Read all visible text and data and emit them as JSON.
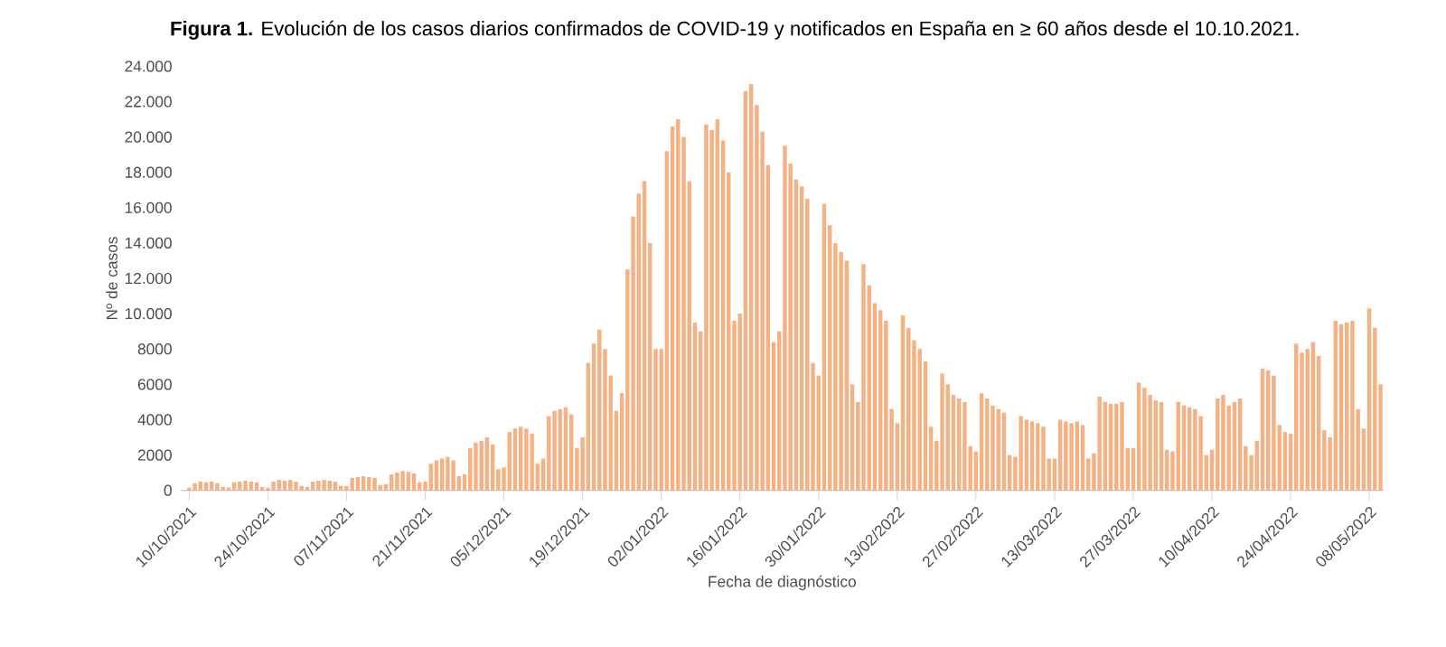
{
  "chart_data": {
    "type": "bar",
    "title": "**Figura 1.** Evolución de los casos diarios confirmados de COVID-19 y notificados en España en ≥ 60 años desde el 10.10.2021.",
    "xlabel": "Fecha de diagnóstico",
    "ylabel": "Nº de casos",
    "color": "#f4b183",
    "categories": [
      "10/10/2021",
      null,
      null,
      null,
      null,
      null,
      null,
      null,
      null,
      null,
      null,
      null,
      null,
      null,
      "24/10/2021",
      null,
      null,
      null,
      null,
      null,
      null,
      null,
      null,
      null,
      null,
      null,
      null,
      null,
      "07/11/2021",
      null,
      null,
      null,
      null,
      null,
      null,
      null,
      null,
      null,
      null,
      null,
      null,
      null,
      "21/11/2021",
      null,
      null,
      null,
      null,
      null,
      null,
      null,
      null,
      null,
      null,
      null,
      null,
      null,
      "05/12/2021",
      null,
      null,
      null,
      null,
      null,
      null,
      null,
      null,
      null,
      null,
      null,
      null,
      null,
      "19/12/2021",
      null,
      null,
      null,
      null,
      null,
      null,
      null,
      null,
      null,
      null,
      null,
      null,
      null,
      "02/01/2022",
      null,
      null,
      null,
      null,
      null,
      null,
      null,
      null,
      null,
      null,
      null,
      null,
      null,
      "16/01/2022",
      null,
      null,
      null,
      null,
      null,
      null,
      null,
      null,
      null,
      null,
      null,
      null,
      null,
      "30/01/2022",
      null,
      null,
      null,
      null,
      null,
      null,
      null,
      null,
      null,
      null,
      null,
      null,
      null,
      "13/02/2022",
      null,
      null,
      null,
      null,
      null,
      null,
      null,
      null,
      null,
      null,
      null,
      null,
      null,
      "27/02/2022",
      null,
      null,
      null,
      null,
      null,
      null,
      null,
      null,
      null,
      null,
      null,
      null,
      null,
      "13/03/2022",
      null,
      null,
      null,
      null,
      null,
      null,
      null,
      null,
      null,
      null,
      null,
      null,
      null,
      "27/03/2022",
      null,
      null,
      null,
      null,
      null,
      null,
      null,
      null,
      null,
      null,
      null,
      null,
      null,
      "10/04/2022",
      null,
      null,
      null,
      null,
      null,
      null,
      null,
      null,
      null,
      null,
      null,
      null,
      null,
      "24/04/2022",
      null,
      null,
      null,
      null,
      null,
      null,
      null,
      null,
      null,
      null,
      null,
      null,
      null,
      "08/05/2022",
      null,
      null
    ],
    "values": [
      150,
      400,
      500,
      450,
      500,
      400,
      200,
      150,
      450,
      500,
      550,
      500,
      450,
      200,
      150,
      500,
      600,
      550,
      600,
      500,
      250,
      200,
      500,
      550,
      600,
      550,
      500,
      250,
      250,
      700,
      750,
      800,
      750,
      700,
      300,
      350,
      900,
      1000,
      1100,
      1050,
      950,
      450,
      500,
      1500,
      1700,
      1800,
      1900,
      1700,
      800,
      900,
      2400,
      2700,
      2800,
      3000,
      2600,
      1200,
      1300,
      3300,
      3500,
      3600,
      3500,
      3200,
      1500,
      1800,
      4200,
      4500,
      4600,
      4700,
      4300,
      2400,
      3000,
      7200,
      8300,
      9100,
      8000,
      6500,
      4500,
      5500,
      12500,
      15500,
      16800,
      17500,
      14000,
      8000,
      8000,
      19200,
      20600,
      21000,
      20000,
      17500,
      9500,
      9000,
      20700,
      20400,
      21000,
      19800,
      18000,
      9600,
      10000,
      22600,
      23000,
      21800,
      20300,
      18400,
      8400,
      9000,
      19500,
      18500,
      17600,
      17200,
      16500,
      7200,
      6500,
      16200,
      15000,
      14000,
      13500,
      13000,
      6000,
      5000,
      12800,
      11600,
      10600,
      10200,
      9600,
      4600,
      3800,
      9900,
      9200,
      8500,
      8000,
      7300,
      3600,
      2800,
      6600,
      6000,
      5400,
      5200,
      5000,
      2500,
      2200,
      5500,
      5200,
      4800,
      4600,
      4400,
      2000,
      1900,
      4200,
      4000,
      3900,
      3800,
      3600,
      1800,
      1800,
      4000,
      3900,
      3800,
      3900,
      3700,
      1800,
      2100,
      5300,
      5000,
      4900,
      4900,
      5000,
      2400,
      2400,
      6100,
      5800,
      5400,
      5100,
      5000,
      2300,
      2200,
      5000,
      4800,
      4700,
      4600,
      4200,
      2000,
      2300,
      5200,
      5400,
      4800,
      5000,
      5200,
      2500,
      2000,
      2800,
      6900,
      6800,
      6500,
      3700,
      3300,
      3200,
      8300,
      7800,
      8000,
      8400,
      7600,
      3400,
      3000,
      9600,
      9400,
      9500,
      9600,
      4600,
      3500,
      10300,
      9200,
      6000
    ],
    "ylim": [
      0,
      24000
    ],
    "yticks": [
      0,
      2000,
      4000,
      6000,
      8000,
      {
        "value": 10000,
        "label": "10.000"
      },
      {
        "value": 12000,
        "label": "12.000"
      },
      {
        "value": 14000,
        "label": "14.000"
      },
      {
        "value": 16000,
        "label": "16.000"
      },
      {
        "value": 18000,
        "label": "18.000"
      },
      {
        "value": 20000,
        "label": "20.000"
      },
      {
        "value": 22000,
        "label": "22.000"
      },
      {
        "value": 24000,
        "label": "24.000"
      }
    ]
  }
}
